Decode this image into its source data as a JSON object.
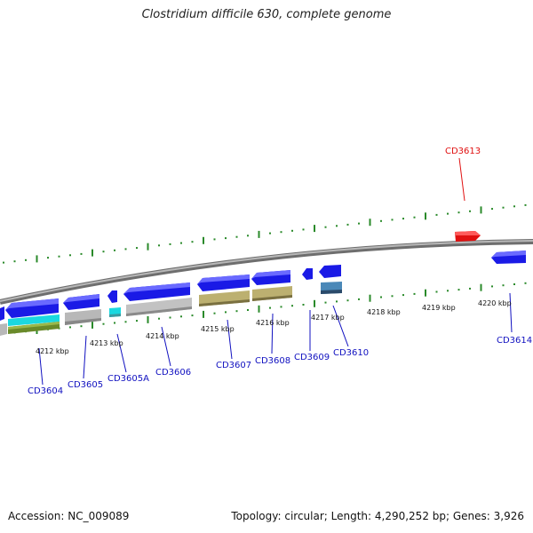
{
  "title": "Clostridium difficile 630, complete genome",
  "footer": {
    "accession": "Accession: NC_009089",
    "topology": "Topology: circular; Length: 4,290,252 bp; Genes: 3,926"
  },
  "colors": {
    "gene_blue": "#1a1ae6",
    "gene_red": "#e01010",
    "gene_cyan": "#1ad8e0",
    "gene_green": "#6a8a2a",
    "gene_gray": "#b8b8b8",
    "gene_khaki": "#bcb070",
    "gene_steel": "#4a88b8",
    "tick": "#2a8a2a",
    "backbone": "#808080",
    "label_blue": "#1010c0",
    "label_red": "#e01010"
  },
  "kbp_labels": [
    "4212 kbp",
    "4213 kbp",
    "4214 kbp",
    "4215 kbp",
    "4216 kbp",
    "4217 kbp",
    "4218 kbp",
    "4219 kbp",
    "4220 kbp"
  ],
  "gene_labels": [
    "CD3604",
    "CD3605",
    "CD3605A",
    "CD3606",
    "CD3607",
    "CD3608",
    "CD3609",
    "CD3610",
    "CD3613",
    "CD3614"
  ]
}
